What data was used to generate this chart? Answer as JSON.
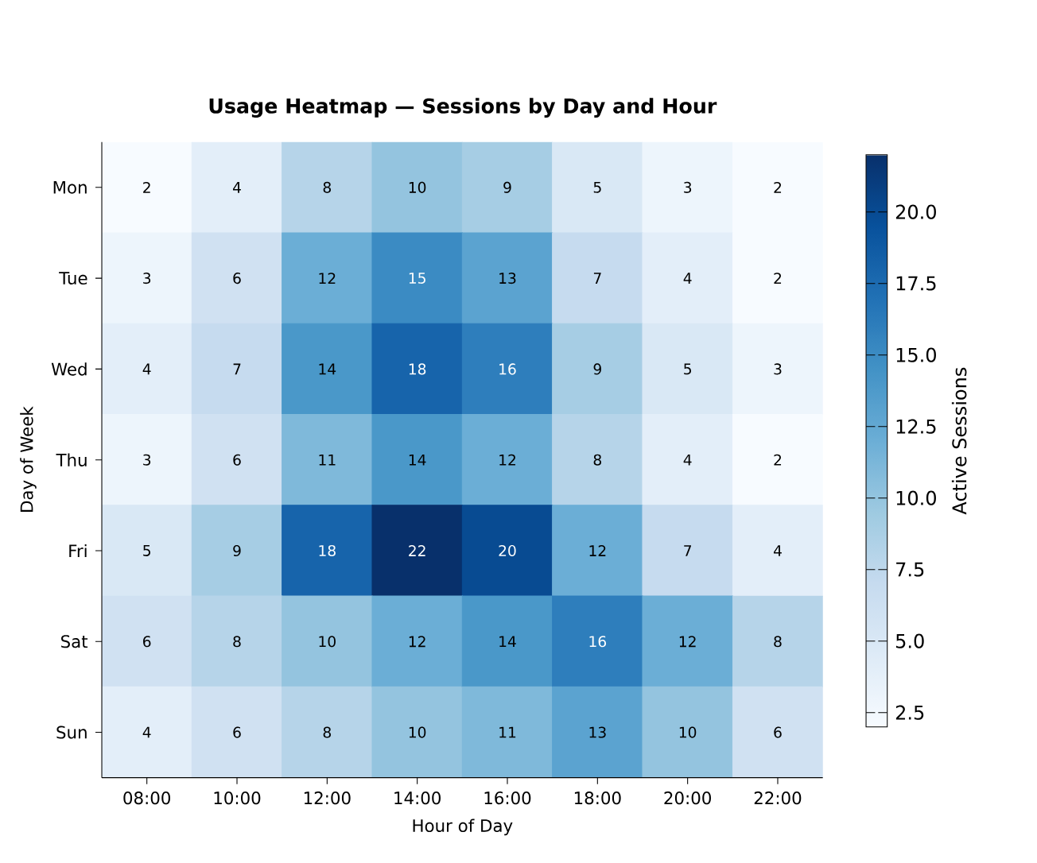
{
  "chart_data": {
    "type": "heatmap",
    "title": "Usage Heatmap — Sessions by Day and Hour",
    "xlabel": "Hour of Day",
    "ylabel": "Day of Week",
    "clabel": "Active Sessions",
    "categories": [
      "08:00",
      "10:00",
      "12:00",
      "14:00",
      "16:00",
      "18:00",
      "20:00",
      "22:00"
    ],
    "y_categories": [
      "Mon",
      "Tue",
      "Wed",
      "Thu",
      "Fri",
      "Sat",
      "Sun"
    ],
    "cells": [
      [
        2,
        4,
        8,
        10,
        9,
        5,
        3,
        2
      ],
      [
        3,
        6,
        12,
        15,
        13,
        7,
        4,
        2
      ],
      [
        4,
        7,
        14,
        18,
        16,
        9,
        5,
        3
      ],
      [
        3,
        6,
        11,
        14,
        12,
        8,
        4,
        2
      ],
      [
        5,
        9,
        18,
        22,
        20,
        12,
        7,
        4
      ],
      [
        6,
        8,
        10,
        12,
        14,
        16,
        12,
        8
      ],
      [
        4,
        6,
        8,
        10,
        11,
        13,
        10,
        6
      ]
    ],
    "data_labels": true,
    "clim": [
      2,
      22
    ],
    "cticks": [
      {
        "value": 2.5,
        "label": "2.5"
      },
      {
        "value": 5,
        "label": "5.0"
      },
      {
        "value": 7.5,
        "label": "7.5"
      },
      {
        "value": 10,
        "label": "10.0"
      },
      {
        "value": 12.5,
        "label": "12.5"
      },
      {
        "value": 15,
        "label": "15.0"
      },
      {
        "value": 17.5,
        "label": "17.5"
      },
      {
        "value": 20,
        "label": "20.0"
      }
    ]
  }
}
